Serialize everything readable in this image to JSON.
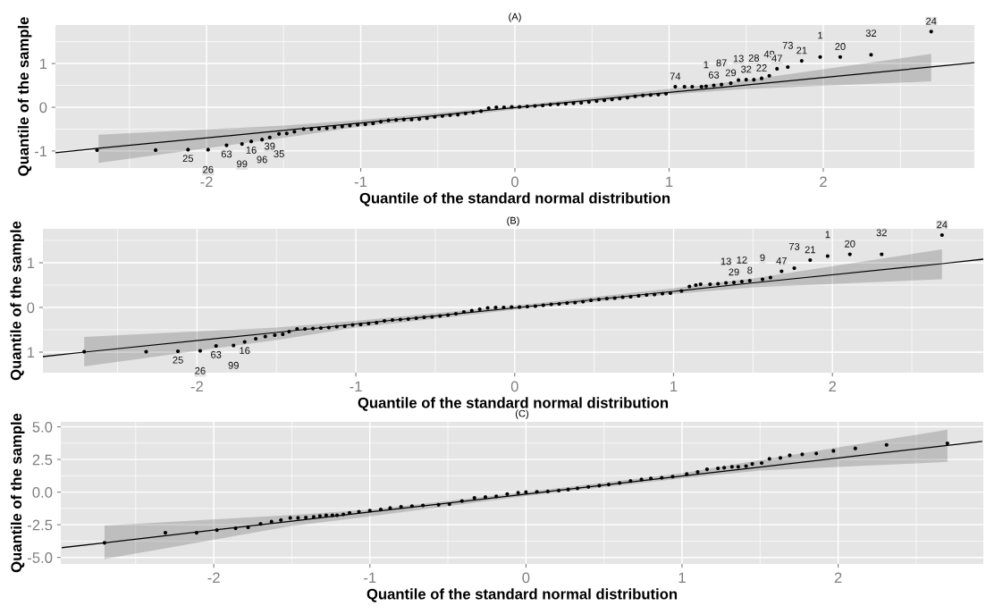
{
  "chart_data": [
    {
      "type": "scatter",
      "title": "(A)",
      "xlabel": "Quantile of the standard normal distribution",
      "ylabel": "Quantile of the sample",
      "xlim": [
        -2.98,
        2.98
      ],
      "ylim": [
        -1.39,
        1.88
      ],
      "xticks": [
        -2,
        -1,
        0,
        1,
        2
      ],
      "yticks": [
        -1,
        0,
        1
      ],
      "grid": true,
      "series": [
        {
          "color": "#000000",
          "marker": "circle",
          "x": [
            -2.71,
            -2.33,
            -2.12,
            -1.99,
            -1.87,
            -1.77,
            -1.71,
            -1.64,
            -1.59,
            -1.53,
            -1.48,
            -1.43,
            -1.37,
            -1.32,
            -1.27,
            -1.22,
            -1.17,
            -1.12,
            -1.07,
            -1.02,
            -0.97,
            -0.92,
            -0.87,
            -0.82,
            -0.77,
            -0.72,
            -0.67,
            -0.62,
            -0.57,
            -0.52,
            -0.47,
            -0.42,
            -0.37,
            -0.32,
            -0.27,
            -0.22,
            -0.17,
            -0.12,
            -0.07,
            -0.02,
            0.03,
            0.08,
            0.13,
            0.18,
            0.23,
            0.28,
            0.33,
            0.38,
            0.43,
            0.48,
            0.53,
            0.58,
            0.63,
            0.68,
            0.73,
            0.78,
            0.83,
            0.88,
            0.93,
            0.98,
            1.04,
            1.1,
            1.15,
            1.21,
            1.24,
            1.29,
            1.34,
            1.4,
            1.45,
            1.5,
            1.55,
            1.6,
            1.65,
            1.7,
            1.77,
            1.86,
            1.98,
            2.11,
            2.31,
            2.7
          ],
          "values": [
            -0.98,
            -0.98,
            -0.97,
            -0.97,
            -0.87,
            -0.84,
            -0.78,
            -0.74,
            -0.69,
            -0.61,
            -0.6,
            -0.56,
            -0.5,
            -0.5,
            -0.49,
            -0.48,
            -0.46,
            -0.44,
            -0.42,
            -0.4,
            -0.39,
            -0.37,
            -0.33,
            -0.3,
            -0.29,
            -0.28,
            -0.28,
            -0.27,
            -0.25,
            -0.22,
            -0.2,
            -0.18,
            -0.17,
            -0.14,
            -0.12,
            -0.09,
            -0.02,
            0.0,
            0.0,
            0.01,
            0.01,
            0.02,
            0.03,
            0.04,
            0.06,
            0.07,
            0.08,
            0.09,
            0.1,
            0.12,
            0.14,
            0.16,
            0.18,
            0.2,
            0.22,
            0.25,
            0.27,
            0.28,
            0.29,
            0.31,
            0.47,
            0.47,
            0.47,
            0.47,
            0.48,
            0.5,
            0.52,
            0.55,
            0.62,
            0.63,
            0.63,
            0.66,
            0.72,
            0.88,
            0.92,
            1.06,
            1.15,
            1.15,
            1.2,
            1.73
          ]
        },
        {
          "type": "line",
          "color": "#000000",
          "x": [
            -2.98,
            -2.7,
            -1.5,
            -1,
            0,
            1,
            1.5,
            2.7,
            2.98
          ],
          "values": [
            -1.04,
            -0.94,
            -0.53,
            -0.36,
            -0.01,
            0.34,
            0.51,
            0.92,
            1.02
          ],
          "lower": [
            null,
            -1.27,
            -0.7,
            -0.44,
            -0.05,
            0.29,
            0.42,
            0.59,
            null
          ],
          "upper": [
            null,
            -0.63,
            -0.42,
            -0.29,
            0.03,
            0.42,
            0.62,
            1.22,
            null
          ]
        }
      ],
      "annotations": [
        {
          "text": "25",
          "x": -2.12,
          "y": -0.97
        },
        {
          "text": "26",
          "x": -1.99,
          "y": -0.97
        },
        {
          "text": "63",
          "x": -1.87,
          "y": -0.87
        },
        {
          "text": "99",
          "x": -1.77,
          "y": -0.84
        },
        {
          "text": "16",
          "x": -1.71,
          "y": -0.78
        },
        {
          "text": "96",
          "x": -1.64,
          "y": -0.74
        },
        {
          "text": "39",
          "x": -1.59,
          "y": -0.69
        },
        {
          "text": "35",
          "x": -1.53,
          "y": -0.61
        },
        {
          "text": "74",
          "x": 1.04,
          "y": 0.47
        },
        {
          "text": "1",
          "x": 1.24,
          "y": 0.48
        },
        {
          "text": "63",
          "x": 1.29,
          "y": 0.5
        },
        {
          "text": "87",
          "x": 1.34,
          "y": 0.52
        },
        {
          "text": "29",
          "x": 1.4,
          "y": 0.55
        },
        {
          "text": "13",
          "x": 1.45,
          "y": 0.62
        },
        {
          "text": "32",
          "x": 1.5,
          "y": 0.63
        },
        {
          "text": "28",
          "x": 1.55,
          "y": 0.63
        },
        {
          "text": "22",
          "x": 1.6,
          "y": 0.66
        },
        {
          "text": "49",
          "x": 1.65,
          "y": 0.72
        },
        {
          "text": "47",
          "x": 1.7,
          "y": 0.88
        },
        {
          "text": "73",
          "x": 1.77,
          "y": 0.92
        },
        {
          "text": "21",
          "x": 1.86,
          "y": 1.06
        },
        {
          "text": "1",
          "x": 1.98,
          "y": 1.15
        },
        {
          "text": "20",
          "x": 2.11,
          "y": 1.15
        },
        {
          "text": "32",
          "x": 2.31,
          "y": 1.2
        },
        {
          "text": "24",
          "x": 2.7,
          "y": 1.73
        }
      ]
    },
    {
      "type": "scatter",
      "title": "(B)",
      "xlabel": "Quantile of the standard normal distribution",
      "ylabel": "Quantile of the sample",
      "xlim": [
        -2.97,
        2.95
      ],
      "ylim": [
        -1.46,
        1.76
      ],
      "xticks": [
        -2,
        -1,
        0,
        1,
        2
      ],
      "yticks": [
        {
          "value": -1,
          "label": "1"
        },
        0,
        1
      ],
      "grid": true,
      "series": [
        {
          "color": "#000000",
          "marker": "circle",
          "x": [
            -2.71,
            -2.32,
            -2.12,
            -1.98,
            -1.88,
            -1.77,
            -1.7,
            -1.63,
            -1.57,
            -1.51,
            -1.46,
            -1.42,
            -1.37,
            -1.32,
            -1.27,
            -1.22,
            -1.17,
            -1.12,
            -1.07,
            -1.02,
            -0.97,
            -0.92,
            -0.87,
            -0.82,
            -0.77,
            -0.72,
            -0.67,
            -0.62,
            -0.57,
            -0.52,
            -0.47,
            -0.42,
            -0.37,
            -0.32,
            -0.27,
            -0.22,
            -0.17,
            -0.12,
            -0.07,
            -0.02,
            0.03,
            0.08,
            0.13,
            0.18,
            0.23,
            0.28,
            0.33,
            0.38,
            0.43,
            0.48,
            0.53,
            0.58,
            0.63,
            0.68,
            0.73,
            0.78,
            0.83,
            0.88,
            0.93,
            0.98,
            1.05,
            1.1,
            1.14,
            1.17,
            1.23,
            1.28,
            1.33,
            1.38,
            1.43,
            1.48,
            1.56,
            1.61,
            1.68,
            1.76,
            1.86,
            1.97,
            2.11,
            2.31,
            2.69
          ],
          "values": [
            -0.99,
            -0.99,
            -0.98,
            -0.97,
            -0.86,
            -0.85,
            -0.77,
            -0.7,
            -0.65,
            -0.62,
            -0.6,
            -0.54,
            -0.48,
            -0.48,
            -0.47,
            -0.46,
            -0.45,
            -0.43,
            -0.42,
            -0.39,
            -0.38,
            -0.36,
            -0.34,
            -0.3,
            -0.28,
            -0.27,
            -0.26,
            -0.24,
            -0.22,
            -0.21,
            -0.19,
            -0.17,
            -0.14,
            -0.1,
            -0.07,
            -0.04,
            -0.01,
            0.0,
            0.0,
            0.01,
            0.01,
            0.02,
            0.03,
            0.05,
            0.07,
            0.08,
            0.1,
            0.11,
            0.13,
            0.16,
            0.18,
            0.2,
            0.21,
            0.23,
            0.24,
            0.26,
            0.28,
            0.29,
            0.31,
            0.32,
            0.37,
            0.47,
            0.5,
            0.52,
            0.52,
            0.53,
            0.55,
            0.56,
            0.58,
            0.6,
            0.63,
            0.67,
            0.81,
            0.88,
            1.06,
            1.15,
            1.19,
            1.19,
            1.62
          ]
        },
        {
          "type": "line",
          "color": "#000000",
          "x": [
            -2.97,
            -2.71,
            -1.5,
            -1,
            0,
            1,
            1.5,
            2.69,
            2.95
          ],
          "values": [
            -1.1,
            -1.0,
            -0.56,
            -0.37,
            -0.01,
            0.36,
            0.55,
            0.98,
            1.08
          ],
          "lower": [
            null,
            -1.32,
            -0.73,
            -0.45,
            -0.05,
            0.3,
            0.45,
            0.63,
            null
          ],
          "upper": [
            null,
            -0.66,
            -0.45,
            -0.3,
            0.04,
            0.43,
            0.65,
            1.3,
            null
          ]
        }
      ],
      "annotations": [
        {
          "text": "25",
          "x": -2.12,
          "y": -0.98
        },
        {
          "text": "26",
          "x": -1.98,
          "y": -0.97
        },
        {
          "text": "63",
          "x": -1.88,
          "y": -0.86
        },
        {
          "text": "99",
          "x": -1.77,
          "y": -0.85
        },
        {
          "text": "16",
          "x": -1.7,
          "y": -0.77
        },
        {
          "text": "13",
          "x": 1.33,
          "y": 0.55
        },
        {
          "text": "29",
          "x": 1.38,
          "y": 0.56
        },
        {
          "text": "12",
          "x": 1.43,
          "y": 0.58
        },
        {
          "text": "8",
          "x": 1.48,
          "y": 0.6
        },
        {
          "text": "9",
          "x": 1.56,
          "y": 0.63
        },
        {
          "text": "47",
          "x": 1.68,
          "y": 0.81
        },
        {
          "text": "73",
          "x": 1.76,
          "y": 0.88
        },
        {
          "text": "21",
          "x": 1.86,
          "y": 1.06
        },
        {
          "text": "1",
          "x": 1.97,
          "y": 1.15
        },
        {
          "text": "20",
          "x": 2.11,
          "y": 1.19
        },
        {
          "text": "32",
          "x": 2.31,
          "y": 1.19
        },
        {
          "text": "24",
          "x": 2.69,
          "y": 1.62
        }
      ]
    },
    {
      "type": "scatter",
      "title": "(C)",
      "xlabel": "Quantile of the standard normal distribution",
      "ylabel": "Quantile of the sample",
      "xlim": [
        -2.98,
        2.93
      ],
      "ylim": [
        -5.5,
        5.38
      ],
      "xticks": [
        -2,
        -1,
        0,
        1,
        2
      ],
      "yticks": [
        {
          "value": -5,
          "label": "-5.0"
        },
        {
          "value": -2.5,
          "label": "-2.5"
        },
        {
          "value": 0,
          "label": "0.0"
        },
        {
          "value": 2.5,
          "label": "2.5"
        },
        {
          "value": 5,
          "label": "5.0"
        }
      ],
      "grid": true,
      "series": [
        {
          "color": "#000000",
          "marker": "circle",
          "x": [
            -2.7,
            -2.31,
            -2.11,
            -1.98,
            -1.86,
            -1.78,
            -1.7,
            -1.63,
            -1.57,
            -1.51,
            -1.46,
            -1.41,
            -1.36,
            -1.32,
            -1.28,
            -1.24,
            -1.21,
            -1.17,
            -1.13,
            -1.07,
            -1.0,
            -0.93,
            -0.87,
            -0.8,
            -0.73,
            -0.66,
            -0.56,
            -0.49,
            -0.41,
            -0.33,
            -0.26,
            -0.19,
            -0.12,
            -0.05,
            0.0,
            0.07,
            0.14,
            0.21,
            0.27,
            0.33,
            0.4,
            0.47,
            0.53,
            0.6,
            0.67,
            0.74,
            0.8,
            0.87,
            0.94,
            1.03,
            1.1,
            1.16,
            1.23,
            1.27,
            1.32,
            1.36,
            1.41,
            1.45,
            1.51,
            1.56,
            1.63,
            1.69,
            1.77,
            1.86,
            1.97,
            2.11,
            2.31,
            2.7
          ],
          "values": [
            -3.88,
            -3.11,
            -3.11,
            -2.91,
            -2.77,
            -2.69,
            -2.43,
            -2.26,
            -2.14,
            -1.97,
            -1.97,
            -1.94,
            -1.89,
            -1.82,
            -1.77,
            -1.77,
            -1.77,
            -1.7,
            -1.58,
            -1.5,
            -1.41,
            -1.33,
            -1.22,
            -1.12,
            -1.07,
            -1.02,
            -0.97,
            -0.92,
            -0.68,
            -0.44,
            -0.38,
            -0.32,
            -0.15,
            -0.05,
            0.0,
            0.02,
            0.05,
            0.12,
            0.2,
            0.29,
            0.4,
            0.5,
            0.58,
            0.7,
            0.85,
            0.97,
            1.05,
            1.1,
            1.19,
            1.38,
            1.55,
            1.75,
            1.82,
            1.87,
            1.94,
            1.94,
            1.99,
            2.16,
            2.23,
            2.55,
            2.62,
            2.82,
            2.89,
            2.96,
            3.16,
            3.35,
            3.62,
            3.74
          ]
        },
        {
          "type": "line",
          "color": "#000000",
          "x": [
            -2.97,
            -2.7,
            -1.5,
            -1,
            0,
            1,
            1.5,
            2.7,
            2.92
          ],
          "values": [
            -4.25,
            -3.88,
            -2.22,
            -1.53,
            -0.15,
            1.23,
            1.92,
            3.58,
            3.88
          ],
          "lower": [
            null,
            -5.12,
            -2.6,
            -1.85,
            -0.3,
            1.05,
            1.65,
            2.31,
            null
          ],
          "upper": [
            null,
            -2.55,
            -1.75,
            -1.35,
            0.0,
            1.45,
            2.45,
            4.78,
            null
          ]
        }
      ]
    }
  ]
}
